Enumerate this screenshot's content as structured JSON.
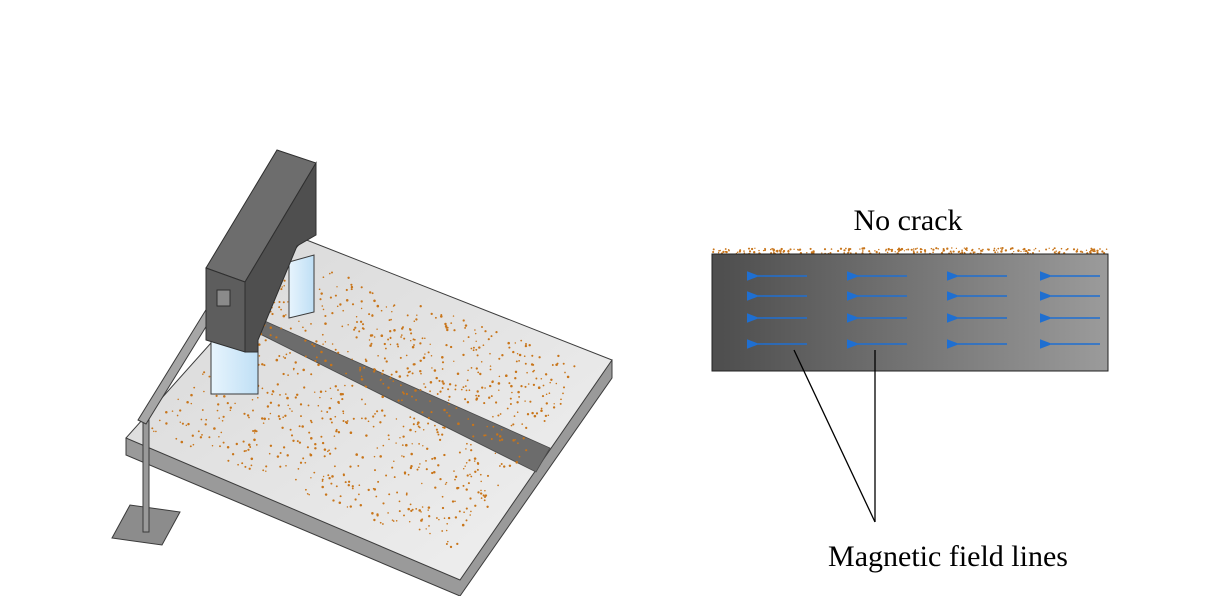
{
  "title_no_crack": "No crack",
  "annotation_label": "Magnetic field lines",
  "colors": {
    "arrow": "#1f6fd1",
    "particles": "#c8751a",
    "magnet": "#5a5a5a",
    "pole": "#cfe6f7",
    "plate_top": "#e6e6e6",
    "plate_side": "#9a9a9a",
    "groove": "#6c6c6c",
    "bar_dark": "#4d4d4d",
    "bar_light": "#9b9b9b"
  },
  "icons": {
    "magnet": "u-shaped-yoke-magnet-icon",
    "arrow": "left-arrow-icon"
  }
}
